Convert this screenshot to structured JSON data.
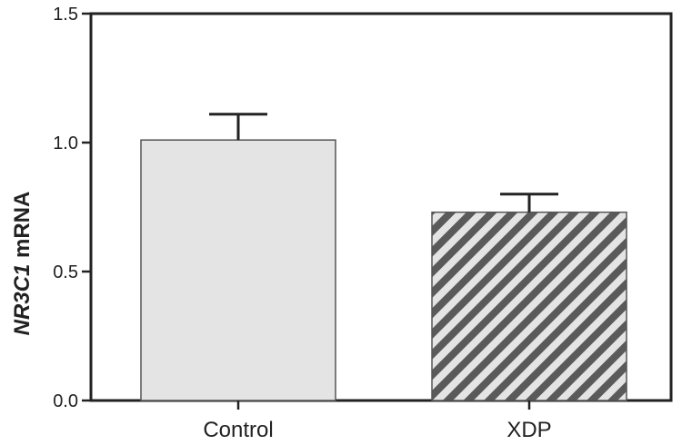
{
  "chart_data": {
    "type": "bar",
    "categories": [
      "Control",
      "XDP"
    ],
    "values": [
      1.01,
      0.73
    ],
    "errors": [
      0.1,
      0.07
    ],
    "ylabel_gene": "NR3C1",
    "ylabel_rest": " mRNA",
    "xlabel": "",
    "title": "",
    "ylim": [
      0,
      1.5
    ],
    "yticks": [
      "0.0",
      "0.5",
      "1.0",
      "1.5"
    ],
    "ytick_values": [
      0,
      0.5,
      1.0,
      1.5
    ],
    "grid": false,
    "bar_styles": [
      "solid",
      "hatched"
    ],
    "colors": {
      "bar_fill": "#e4e4e4",
      "hatch": "#5a5a5a",
      "axis": "#222222"
    }
  }
}
